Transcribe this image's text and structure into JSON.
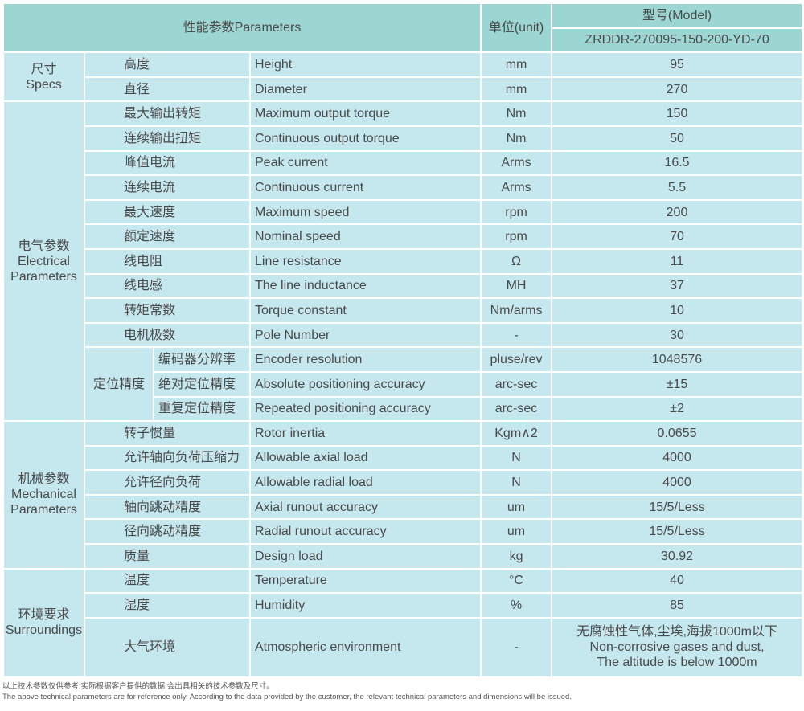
{
  "header": {
    "parameters": "性能参数Parameters",
    "unit": "单位(unit)",
    "model_label": "型号(Model)",
    "model_value": "ZRDDR-270095-150-200-YD-70"
  },
  "colors": {
    "header_bg": "#9cd6d2",
    "body_bg": "#c5e7ee",
    "border": "#ffffff"
  },
  "groups": [
    {
      "zh": "尺寸",
      "en": "Specs",
      "rows": [
        {
          "zh": "高度",
          "en": "Height",
          "unit": "mm",
          "value": "95"
        },
        {
          "zh": "直径",
          "en": "Diameter",
          "unit": "mm",
          "value": "270"
        }
      ]
    },
    {
      "zh": "电气参数",
      "en": "Electrical Parameters",
      "rows": [
        {
          "zh": "最大输出转矩",
          "en": "Maximum output torque",
          "unit": "Nm",
          "value": "150"
        },
        {
          "zh": "连续输出扭矩",
          "en": "Continuous output torque",
          "unit": "Nm",
          "value": "50"
        },
        {
          "zh": "峰值电流",
          "en": "Peak current",
          "unit": "Arms",
          "value": "16.5"
        },
        {
          "zh": "连续电流",
          "en": "Continuous current",
          "unit": "Arms",
          "value": "5.5"
        },
        {
          "zh": "最大速度",
          "en": "Maximum speed",
          "unit": "rpm",
          "value": "200"
        },
        {
          "zh": "额定速度",
          "en": "Nominal speed",
          "unit": "rpm",
          "value": "70"
        },
        {
          "zh": "线电阻",
          "en": "Line resistance",
          "unit": "Ω",
          "value": "11"
        },
        {
          "zh": "线电感",
          "en": "The line inductance",
          "unit": "MH",
          "value": "37"
        },
        {
          "zh": "转矩常数",
          "en": "Torque constant",
          "unit": "Nm/arms",
          "value": "10"
        },
        {
          "zh": "电机极数",
          "en": "Pole Number",
          "unit": "-",
          "value": "30"
        },
        {
          "parent": "定位精度",
          "zh": "编码器分辨率",
          "en": "Encoder resolution",
          "unit": "pluse/rev",
          "value": "1048576"
        },
        {
          "parent": "定位精度",
          "zh": "绝对定位精度",
          "en": "Absolute positioning accuracy",
          "unit": "arc-sec",
          "value": "±15"
        },
        {
          "parent": "定位精度",
          "zh": "重复定位精度",
          "en": "Repeated positioning accuracy",
          "unit": "arc-sec",
          "value": "±2"
        }
      ]
    },
    {
      "zh": "机械参数",
      "en": "Mechanical Parameters",
      "rows": [
        {
          "zh": "转子惯量",
          "en": "Rotor inertia",
          "unit": "Kgm∧2",
          "value": "0.0655"
        },
        {
          "zh": "允许轴向负荷压缩力",
          "en": "Allowable axial load",
          "unit": "N",
          "value": "4000"
        },
        {
          "zh": "允许径向负荷",
          "en": "Allowable radial load",
          "unit": "N",
          "value": "4000"
        },
        {
          "zh": "轴向跳动精度",
          "en": "Axial runout accuracy",
          "unit": "um",
          "value": "15/5/Less"
        },
        {
          "zh": "径向跳动精度",
          "en": "Radial runout accuracy",
          "unit": "um",
          "value": "15/5/Less"
        },
        {
          "zh": "质量",
          "en": "Design load",
          "unit": "kg",
          "value": "30.92"
        }
      ]
    },
    {
      "zh": "环境要求",
      "en": "Surroundings",
      "rows": [
        {
          "zh": "温度",
          "en": "Temperature",
          "unit": "°C",
          "value": "40"
        },
        {
          "zh": "湿度",
          "en": "Humidity",
          "unit": "%",
          "value": "85"
        },
        {
          "zh": "大气环境",
          "en": "Atmospheric environment",
          "unit": "-",
          "value_lines": [
            "无腐蚀性气体,尘埃,海拔1000m以下",
            "Non-corrosive gases and dust,",
            "The altitude is below 1000m"
          ]
        }
      ]
    }
  ],
  "footer": {
    "zh": "以上技术参数仅供参考,实际根据客户提供的数据,会出具相关的技术参数及尺寸。",
    "en": "The above technical parameters are for reference only. According to the data provided by the customer, the relevant technical parameters and dimensions will be issued."
  }
}
